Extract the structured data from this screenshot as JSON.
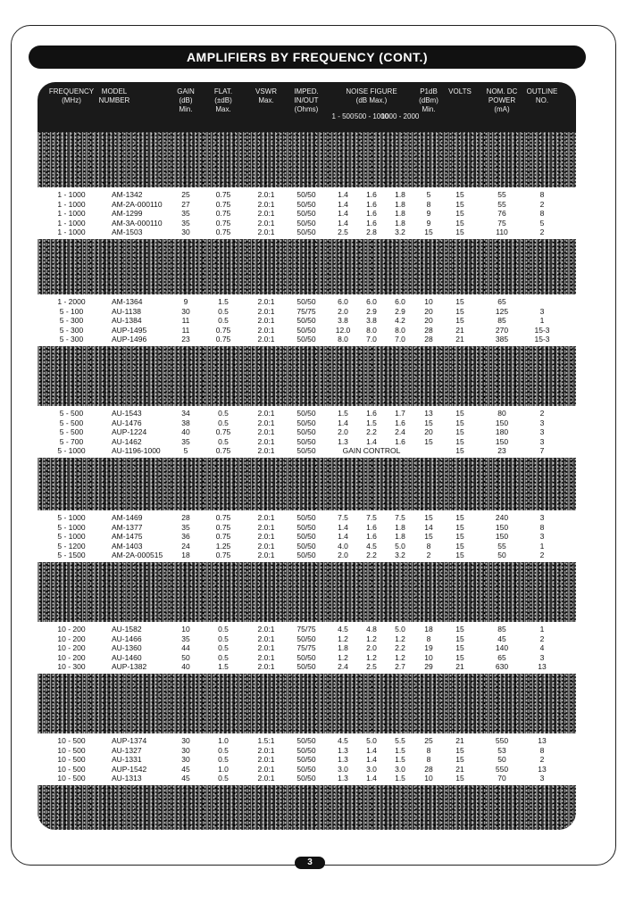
{
  "header": {
    "title": "AMPLIFIERS BY FREQUENCY (CONT.)"
  },
  "table": {
    "columns": [
      "FREQUENCY\n(MHz)",
      "MODEL\nNUMBER",
      "GAIN\n(dB)\nMin.",
      "FLAT.\n(±dB)\nMax.",
      "VSWR\nMax.",
      "IMPED.\nIN/OUT\n(Ohms)",
      "1 - 500",
      "500 - 1000",
      "1000 - 2000",
      "P1dB\n(dBm)\nMin.",
      "VOLTS",
      "NOM. DC\nPOWER\n(mA)",
      "OUTLINE\nNO."
    ],
    "noise_figure_heading": "NOISE FIGURE\n(dB Max.)",
    "groups": [
      [
        [
          "1 - 1000",
          "AM-1342",
          "25",
          "0.75",
          "2.0:1",
          "50/50",
          "1.4",
          "1.6",
          "1.8",
          "5",
          "15",
          "55",
          "8"
        ],
        [
          "1 - 1000",
          "AM-2A-000110",
          "27",
          "0.75",
          "2.0:1",
          "50/50",
          "1.4",
          "1.6",
          "1.8",
          "8",
          "15",
          "55",
          "2"
        ],
        [
          "1 - 1000",
          "AM-1299",
          "35",
          "0.75",
          "2.0:1",
          "50/50",
          "1.4",
          "1.6",
          "1.8",
          "9",
          "15",
          "76",
          "8"
        ],
        [
          "1 - 1000",
          "AM-3A-000110",
          "35",
          "0.75",
          "2.0:1",
          "50/50",
          "1.4",
          "1.6",
          "1.8",
          "9",
          "15",
          "75",
          "5"
        ],
        [
          "1 - 1000",
          "AM-1503",
          "30",
          "0.75",
          "2.0:1",
          "50/50",
          "2.5",
          "2.8",
          "3.2",
          "15",
          "15",
          "110",
          "2"
        ]
      ],
      [
        [
          "1 - 2000",
          "AM-1364",
          "9",
          "1.5",
          "2.0:1",
          "50/50",
          "6.0",
          "6.0",
          "6.0",
          "10",
          "15",
          "65",
          null
        ],
        [
          "5 - 100",
          "AU-1138",
          "30",
          "0.5",
          "2.0:1",
          "75/75",
          "2.0",
          "2.9",
          "2.9",
          "20",
          "15",
          "125",
          "3"
        ],
        [
          "5 - 300",
          "AU-1384",
          "11",
          "0.5",
          "2.0:1",
          "50/50",
          "3.8",
          "3.8",
          "4.2",
          "20",
          "15",
          "85",
          "1"
        ],
        [
          "5 - 300",
          "AUP-1495",
          "11",
          "0.75",
          "2.0:1",
          "50/50",
          "12.0",
          "8.0",
          "8.0",
          "28",
          "21",
          "270",
          "15-3"
        ],
        [
          "5 - 300",
          "AUP-1496",
          "23",
          "0.75",
          "2.0:1",
          "50/50",
          "8.0",
          "7.0",
          "7.0",
          "28",
          "21",
          "385",
          "15-3"
        ]
      ],
      [
        [
          "5 - 500",
          "AU-1543",
          "34",
          "0.5",
          "2.0:1",
          "50/50",
          "1.5",
          "1.6",
          "1.7",
          "13",
          "15",
          "80",
          "2"
        ],
        [
          "5 - 500",
          "AU-1476",
          "38",
          "0.5",
          "2.0:1",
          "50/50",
          "1.4",
          "1.5",
          "1.6",
          "15",
          "15",
          "150",
          "3"
        ],
        [
          "5 - 500",
          "AUP-1224",
          "40",
          "0.75",
          "2.0:1",
          "50/50",
          "2.0",
          "2.2",
          "2.4",
          "20",
          "15",
          "180",
          "3"
        ],
        [
          "5 - 700",
          "AU-1462",
          "35",
          "0.5",
          "2.0:1",
          "50/50",
          "1.3",
          "1.4",
          "1.6",
          "15",
          "15",
          "150",
          "3"
        ],
        [
          "5 - 1000",
          "AU-1196-1000",
          "5",
          "0.75",
          "2.0:1",
          "50/50",
          null,
          "GAIN CONTROL",
          null,
          null,
          "15",
          "23",
          "7"
        ]
      ],
      [
        [
          "5 - 1000",
          "AM-1469",
          "28",
          "0.75",
          "2.0:1",
          "50/50",
          "7.5",
          "7.5",
          "7.5",
          "15",
          "15",
          "240",
          "3"
        ],
        [
          "5 - 1000",
          "AM-1377",
          "35",
          "0.75",
          "2.0:1",
          "50/50",
          "1.4",
          "1.6",
          "1.8",
          "14",
          "15",
          "150",
          "8"
        ],
        [
          "5 - 1000",
          "AM-1475",
          "36",
          "0.75",
          "2.0:1",
          "50/50",
          "1.4",
          "1.6",
          "1.8",
          "15",
          "15",
          "150",
          "3"
        ],
        [
          "5 - 1200",
          "AM-1403",
          "24",
          "1.25",
          "2.0:1",
          "50/50",
          "4.0",
          "4.5",
          "5.0",
          "8",
          "15",
          "55",
          "1"
        ],
        [
          "5 - 1500",
          "AM-2A-000515",
          "18",
          "0.75",
          "2.0:1",
          "50/50",
          "2.0",
          "2.2",
          "3.2",
          "2",
          "15",
          "50",
          "2"
        ]
      ],
      [
        [
          "10 - 200",
          "AU-1582",
          "10",
          "0.5",
          "2.0:1",
          "75/75",
          "4.5",
          "4.8",
          "5.0",
          "18",
          "15",
          "85",
          "1"
        ],
        [
          "10 - 200",
          "AU-1466",
          "35",
          "0.5",
          "2.0:1",
          "50/50",
          "1.2",
          "1.2",
          "1.2",
          "8",
          "15",
          "45",
          "2"
        ],
        [
          "10 - 200",
          "AU-1360",
          "44",
          "0.5",
          "2.0:1",
          "75/75",
          "1.8",
          "2.0",
          "2.2",
          "19",
          "15",
          "140",
          "4"
        ],
        [
          "10 - 200",
          "AU-1460",
          "50",
          "0.5",
          "2.0:1",
          "50/50",
          "1.2",
          "1.2",
          "1.2",
          "10",
          "15",
          "65",
          "3"
        ],
        [
          "10 - 300",
          "AUP-1382",
          "40",
          "1.5",
          "2.0:1",
          "50/50",
          "2.4",
          "2.5",
          "2.7",
          "29",
          "21",
          "630",
          "13"
        ]
      ],
      [
        [
          "10 - 500",
          "AUP-1374",
          "30",
          "1.0",
          "1.5:1",
          "50/50",
          "4.5",
          "5.0",
          "5.5",
          "25",
          "21",
          "550",
          "13"
        ],
        [
          "10 - 500",
          "AU-1327",
          "30",
          "0.5",
          "2.0:1",
          "50/50",
          "1.3",
          "1.4",
          "1.5",
          "8",
          "15",
          "53",
          "8"
        ],
        [
          "10 - 500",
          "AU-1331",
          "30",
          "0.5",
          "2.0:1",
          "50/50",
          "1.3",
          "1.4",
          "1.5",
          "8",
          "15",
          "50",
          "2"
        ],
        [
          "10 - 500",
          "AUP-1542",
          "45",
          "1.0",
          "2.0:1",
          "50/50",
          "3.0",
          "3.0",
          "3.0",
          "28",
          "21",
          "550",
          "13"
        ],
        [
          "10 - 500",
          "AU-1313",
          "45",
          "0.5",
          "2.0:1",
          "50/50",
          "1.3",
          "1.4",
          "1.5",
          "10",
          "15",
          "70",
          "3"
        ]
      ]
    ]
  },
  "page_number": "3"
}
